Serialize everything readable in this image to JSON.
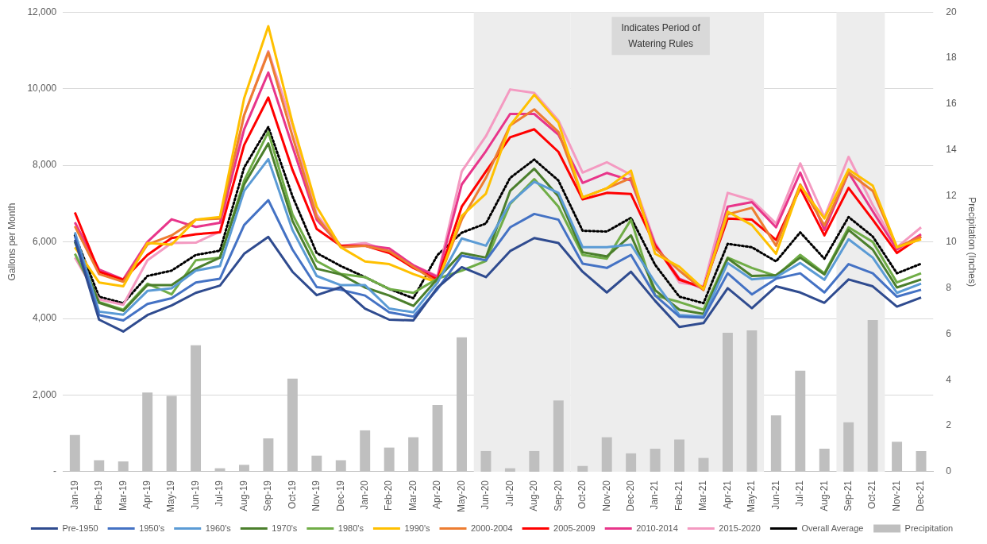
{
  "chart_data": {
    "type": "line",
    "ylabel": "Gallons per Month",
    "y2label": "Precipitation (Inches)",
    "categories": [
      "Jan-19",
      "Feb-19",
      "Mar-19",
      "Apr-19",
      "May-19",
      "Jun-19",
      "Jul-19",
      "Aug-19",
      "Sep-19",
      "Oct-19",
      "Nov-19",
      "Dec-19",
      "Jan-20",
      "Feb-20",
      "Mar-20",
      "Apr-20",
      "May-20",
      "Jun-20",
      "Jul-20",
      "Aug-20",
      "Sep-20",
      "Oct-20",
      "Nov-20",
      "Dec-20",
      "Jan-21",
      "Feb-21",
      "Mar-21",
      "Apr-21",
      "May-21",
      "Jun-21",
      "Jul-21",
      "Aug-21",
      "Sep-21",
      "Oct-21",
      "Nov-21",
      "Dec-21"
    ],
    "ylim": [
      0,
      12000
    ],
    "yticks": [
      {
        "value": 0,
        "label": "-"
      },
      {
        "value": 2000,
        "label": "2,000"
      },
      {
        "value": 4000,
        "label": "4,000"
      },
      {
        "value": 6000,
        "label": "6,000"
      },
      {
        "value": 8000,
        "label": "8,000"
      },
      {
        "value": 10000,
        "label": "10,000"
      },
      {
        "value": 12000,
        "label": "12,000"
      }
    ],
    "y2lim": [
      0,
      20
    ],
    "y2ticks": [
      0,
      2,
      4,
      6,
      8,
      10,
      12,
      14,
      16,
      18,
      20
    ],
    "grid": "y",
    "legend": "bottom",
    "marker": "none",
    "bands": [
      {
        "axis": "x",
        "from": "Jun-20",
        "to": "Sep-20",
        "color": "#ededed"
      },
      {
        "axis": "x",
        "from": "Oct-20",
        "to": "May-21",
        "color": "#ededed"
      },
      {
        "axis": "x",
        "from": "Sep-21",
        "to": "Oct-21",
        "color": "#ededed"
      }
    ],
    "annotations": [
      "Indicates Period of Watering Rules"
    ],
    "series": [
      {
        "name": "Precipitation",
        "type": "bar",
        "axis": "y2",
        "color": "#bfbfbf",
        "values": [
          1.6,
          0.5,
          0.45,
          3.45,
          3.3,
          5.5,
          0.15,
          0.3,
          1.45,
          4.05,
          0.7,
          0.5,
          1.8,
          1.05,
          1.5,
          2.9,
          5.85,
          0.9,
          0.15,
          0.9,
          3.1,
          0.25,
          1.5,
          0.8,
          1.0,
          1.4,
          0.6,
          6.05,
          6.15,
          2.45,
          4.4,
          1.0,
          2.15,
          6.6,
          1.3,
          0.9
        ]
      },
      {
        "name": "Pre-1950",
        "color": "#2f4b8f",
        "values": [
          6050,
          3970,
          3660,
          4090,
          4340,
          4670,
          4860,
          5690,
          6130,
          5220,
          4610,
          4820,
          4260,
          3970,
          3950,
          4810,
          5340,
          5080,
          5760,
          6100,
          5970,
          5220,
          4680,
          5220,
          4460,
          3780,
          3880,
          4790,
          4270,
          4840,
          4680,
          4410,
          5020,
          4840,
          4310,
          4550
        ]
      },
      {
        "name": "1950's",
        "color": "#4472c4",
        "values": [
          6150,
          4090,
          3950,
          4380,
          4530,
          4940,
          5040,
          6440,
          7090,
          5800,
          4820,
          4750,
          4600,
          4160,
          4050,
          4770,
          5640,
          5520,
          6380,
          6730,
          6580,
          5430,
          5320,
          5660,
          4600,
          4050,
          4020,
          5180,
          4630,
          5040,
          5180,
          4680,
          5420,
          5180,
          4570,
          4750
        ]
      },
      {
        "name": "1960's",
        "color": "#5b9bd5",
        "values": [
          6250,
          4180,
          4100,
          4720,
          4790,
          5250,
          5370,
          7330,
          8160,
          6310,
          5110,
          4870,
          4870,
          4260,
          4160,
          4940,
          6090,
          5900,
          7020,
          7570,
          7280,
          5860,
          5860,
          5930,
          4940,
          4090,
          4050,
          5450,
          5020,
          5080,
          5450,
          5010,
          6070,
          5590,
          4670,
          4910
        ]
      },
      {
        "name": "1970's",
        "color": "#4b7f2c",
        "values": [
          6000,
          4410,
          4200,
          4870,
          4870,
          5300,
          5590,
          7500,
          8570,
          6550,
          5300,
          5150,
          4810,
          4600,
          4330,
          5040,
          5710,
          5590,
          7330,
          7910,
          7190,
          5730,
          5620,
          6170,
          4740,
          4230,
          4120,
          5570,
          5110,
          5130,
          5590,
          5150,
          6310,
          5800,
          4810,
          5020
        ]
      },
      {
        "name": "1980's",
        "color": "#70ad47",
        "values": [
          5690,
          4430,
          4230,
          4910,
          4630,
          5520,
          5590,
          7600,
          8870,
          6720,
          5500,
          5160,
          5080,
          4770,
          4670,
          5040,
          5250,
          5500,
          6990,
          7640,
          6920,
          5660,
          5560,
          6580,
          4600,
          4430,
          4230,
          5590,
          5320,
          5110,
          5660,
          5180,
          6380,
          6000,
          4940,
          5180
        ]
      },
      {
        "name": "1990's",
        "color": "#ffc000",
        "values": [
          5860,
          4940,
          4840,
          5970,
          5930,
          6580,
          6650,
          9750,
          11630,
          9110,
          6920,
          5860,
          5490,
          5420,
          5160,
          4940,
          6680,
          7260,
          9040,
          9840,
          9110,
          7160,
          7400,
          7860,
          5690,
          5350,
          4770,
          6790,
          6440,
          5690,
          7470,
          6610,
          7890,
          7470,
          5860,
          6070
        ]
      },
      {
        "name": "2000-2004",
        "color": "#ed7d31",
        "values": [
          6410,
          5160,
          4960,
          5930,
          6170,
          6580,
          6610,
          9310,
          10950,
          8760,
          6650,
          5860,
          5900,
          5760,
          5350,
          4940,
          6580,
          7670,
          9040,
          9460,
          8870,
          7160,
          7400,
          7670,
          5830,
          5250,
          4740,
          6720,
          6890,
          5900,
          7500,
          6430,
          7810,
          7330,
          5860,
          6140
        ]
      },
      {
        "name": "2005-2009",
        "color": "#ff0000",
        "values": [
          6770,
          5220,
          5010,
          5660,
          6100,
          6200,
          6250,
          8530,
          9770,
          7880,
          6340,
          5900,
          5900,
          5710,
          5320,
          5020,
          6920,
          7840,
          8730,
          8940,
          8350,
          7110,
          7280,
          7250,
          5900,
          5010,
          4810,
          6610,
          6580,
          6050,
          7400,
          6170,
          7410,
          6580,
          5710,
          6140
        ]
      },
      {
        "name": "2010-2014",
        "color": "#e8358a",
        "values": [
          6510,
          5280,
          5020,
          6000,
          6590,
          6390,
          6500,
          8940,
          10420,
          8490,
          6580,
          5900,
          5910,
          5830,
          5390,
          5080,
          7500,
          8370,
          9340,
          9340,
          8800,
          7540,
          7800,
          7600,
          5930,
          5040,
          4770,
          6920,
          7040,
          6380,
          7810,
          6310,
          7810,
          6800,
          5800,
          6200
        ]
      },
      {
        "name": "2015-2020",
        "color": "#f49ac1",
        "values": [
          5590,
          4500,
          4360,
          5520,
          5970,
          5980,
          6270,
          9310,
          10980,
          9040,
          6720,
          5900,
          5970,
          5760,
          5390,
          5110,
          7840,
          8760,
          9980,
          9890,
          9170,
          7810,
          8080,
          7750,
          5970,
          4940,
          4840,
          7280,
          7090,
          6480,
          8050,
          6650,
          8220,
          6960,
          5860,
          6380
        ]
      },
      {
        "name": "Overall Average",
        "color": "#000000",
        "line_style": "dotted",
        "values": [
          6170,
          4570,
          4400,
          5110,
          5250,
          5660,
          5770,
          7940,
          9000,
          7190,
          5710,
          5370,
          5080,
          4770,
          4530,
          5660,
          6240,
          6480,
          7670,
          8150,
          7600,
          6290,
          6270,
          6630,
          5400,
          4570,
          4400,
          5950,
          5860,
          5490,
          6250,
          5560,
          6650,
          6140,
          5180,
          5430
        ]
      }
    ]
  }
}
